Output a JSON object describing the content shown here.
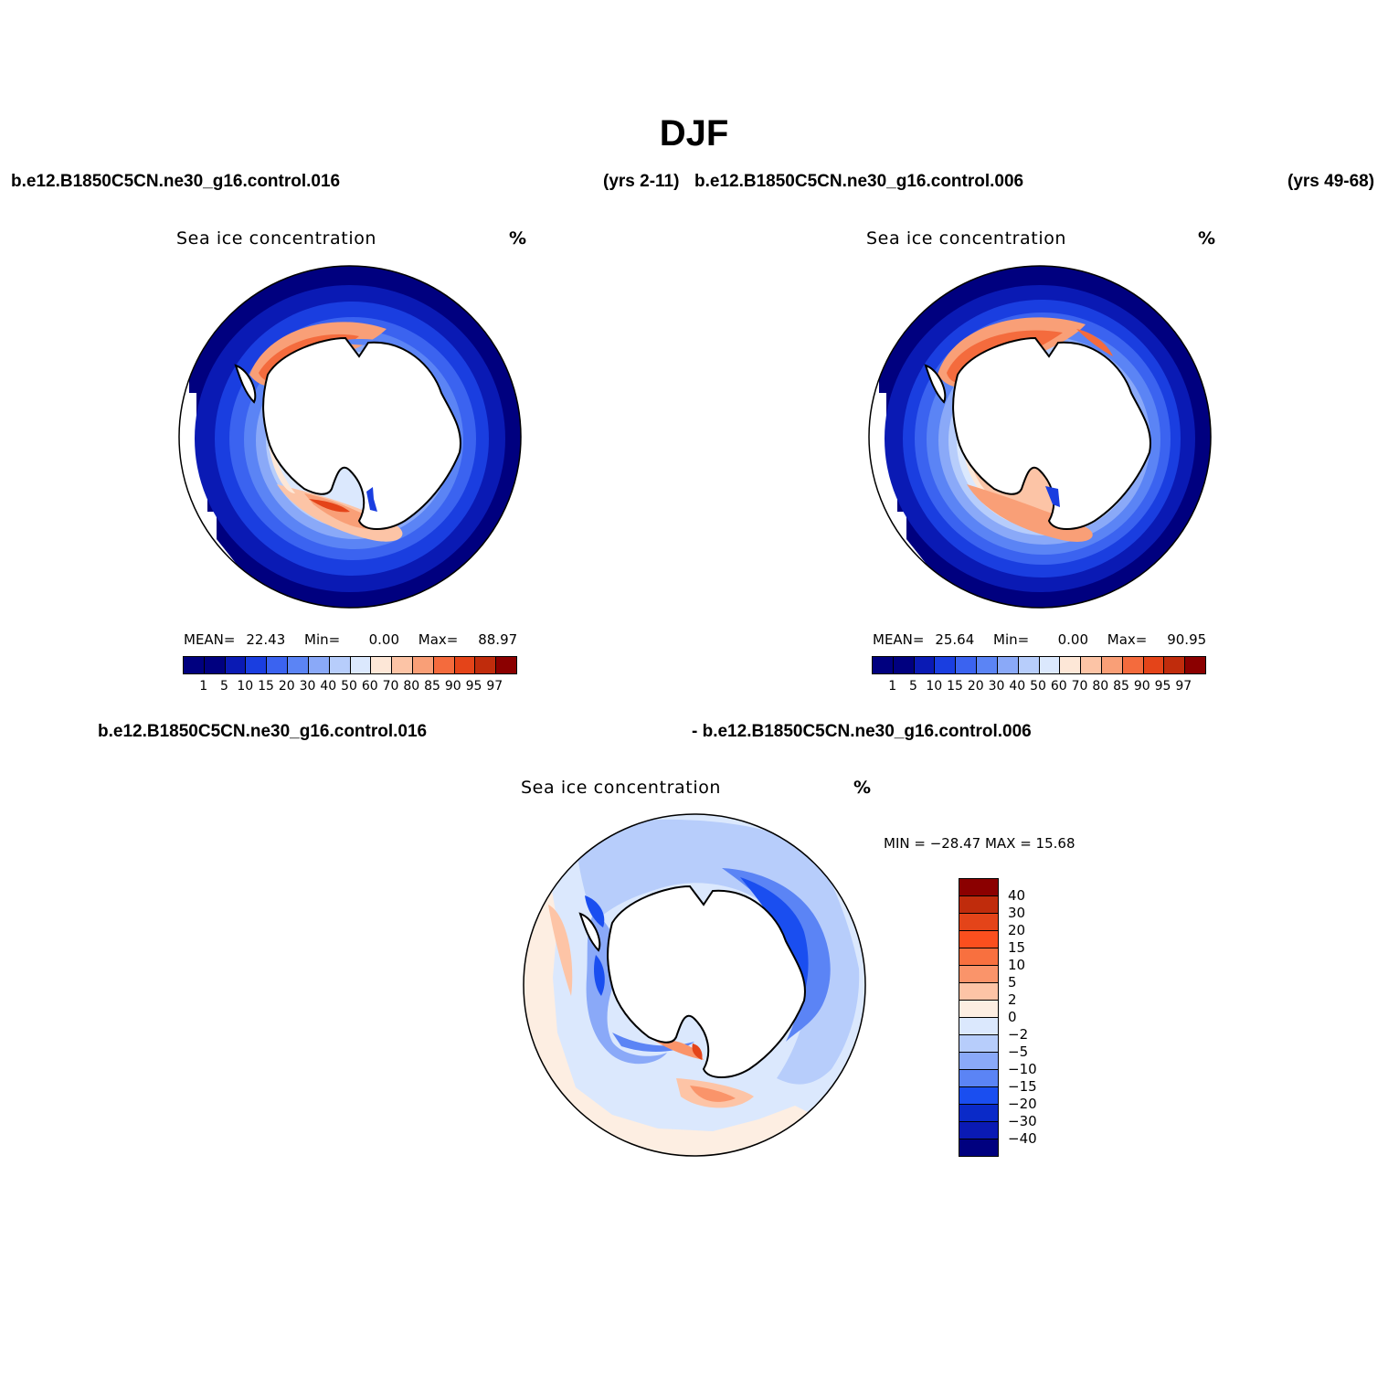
{
  "main_title": "DJF",
  "header": {
    "case1": "b.e12.B1850C5CN.ne30_g16.control.016",
    "years1": "(yrs 2-11)",
    "case2": "b.e12.B1850C5CN.ne30_g16.control.006",
    "years2": "(yrs 49-68)"
  },
  "panel1": {
    "title": "Sea ice concentration",
    "units": "%",
    "mean_label": "MEAN=",
    "mean": "22.43",
    "min_label": "Min=",
    "min": "0.00",
    "max_label": "Max=",
    "max": "88.97"
  },
  "panel2": {
    "title": "Sea ice concentration",
    "units": "%",
    "mean_label": "MEAN=",
    "mean": "25.64",
    "min_label": "Min=",
    "min": "0.00",
    "max_label": "Max=",
    "max": "90.95"
  },
  "diff": {
    "case_left": "b.e12.B1850C5CN.ne30_g16.control.016",
    "case_right": "- b.e12.B1850C5CN.ne30_g16.control.006",
    "title": "Sea ice concentration",
    "units": "%",
    "minmax": "MIN = −28.47  MAX =   15.68"
  },
  "colorbar_abs": {
    "labels": [
      "1",
      "5",
      "10",
      "15",
      "20",
      "30",
      "40",
      "50",
      "60",
      "70",
      "80",
      "85",
      "90",
      "95",
      "97"
    ],
    "colors": [
      "#00007f",
      "#0a1ab4",
      "#1a3ee0",
      "#3b63f0",
      "#5b84f5",
      "#8aa9f8",
      "#b7cdfb",
      "#dbe8fd",
      "#fde7d7",
      "#fcc4a6",
      "#f99f77",
      "#f46b3d",
      "#e44419",
      "#c02c0c",
      "#8b0000"
    ]
  },
  "colorbar_diff": {
    "labels": [
      "40",
      "30",
      "20",
      "15",
      "10",
      "5",
      "2",
      "0",
      "−2",
      "−5",
      "−10",
      "−15",
      "−20",
      "−30",
      "−40"
    ],
    "colors": [
      "#8b0000",
      "#c02c0c",
      "#e44419",
      "#fb4f1e",
      "#f8703f",
      "#fa946a",
      "#fdc4a6",
      "#fdeee2",
      "#dbe8fd",
      "#b7cdfb",
      "#8aa9f8",
      "#5b84f5",
      "#1a4ef0",
      "#0a2ac8",
      "#0a1ab4",
      "#00007f"
    ]
  },
  "map_colors": {
    "ocean_edge": "#00008b",
    "land": "#ffffff",
    "coast": "#000000"
  }
}
